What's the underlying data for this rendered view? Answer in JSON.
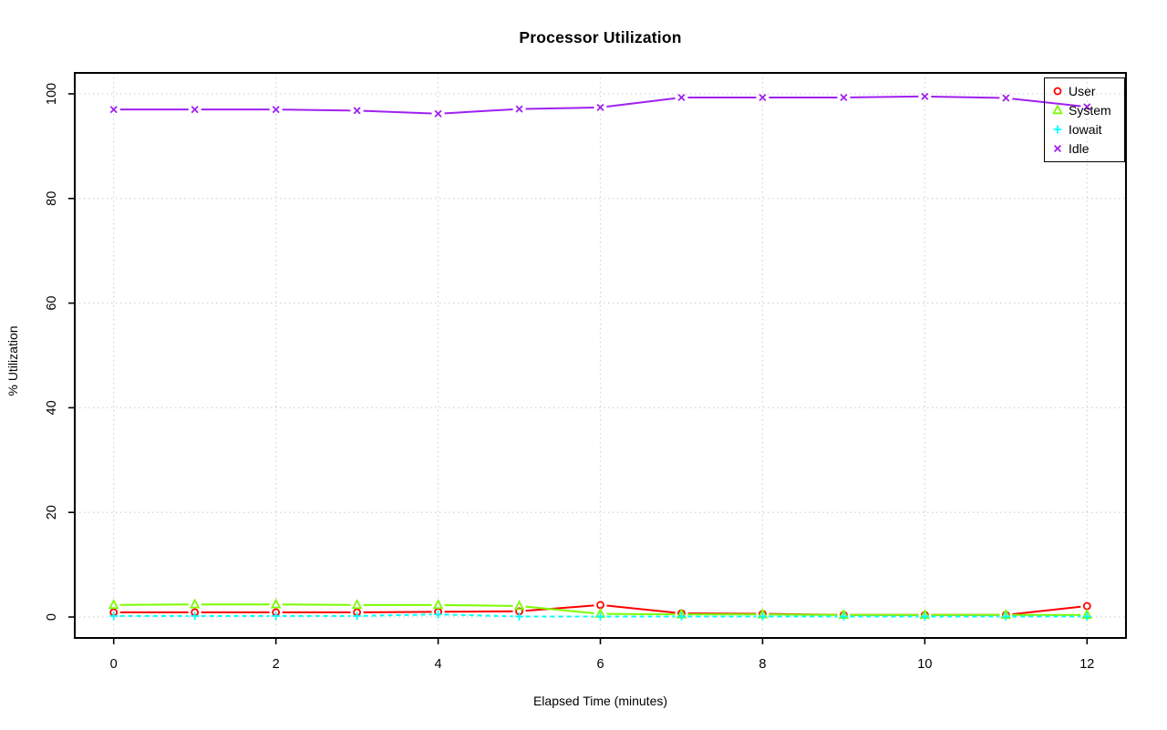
{
  "title": "Processor Utilization",
  "x_axis_title": "Elapsed Time (minutes)",
  "y_axis_title": "% Utilization",
  "colors": {
    "user": "#FF0000",
    "system": "#7CFC00",
    "iowait": "#00FFFF",
    "idle": "#A020F0",
    "grid": "#d4d4d4",
    "axis": "#000000"
  },
  "chart_data": {
    "type": "line",
    "title": "Processor Utilization",
    "xlabel": "Elapsed Time (minutes)",
    "ylabel": "% Utilization",
    "xlim": [
      0,
      12
    ],
    "ylim": [
      0,
      100
    ],
    "x_ticks": [
      0,
      2,
      4,
      6,
      8,
      10,
      12
    ],
    "y_ticks": [
      0,
      20,
      40,
      60,
      80,
      100
    ],
    "grid": true,
    "grid_style": "dotted",
    "legend_position": "top-right",
    "x": [
      0,
      1,
      2,
      3,
      4,
      5,
      6,
      7,
      8,
      9,
      10,
      11,
      12
    ],
    "series": [
      {
        "name": "User",
        "color": "#FF0000",
        "marker": "circle",
        "line": "solid",
        "values": [
          0.9,
          0.9,
          0.9,
          0.9,
          1.0,
          1.1,
          2.3,
          0.7,
          0.6,
          0.4,
          0.4,
          0.4,
          2.1
        ]
      },
      {
        "name": "System",
        "color": "#7CFC00",
        "marker": "triangle",
        "line": "solid",
        "values": [
          2.3,
          2.4,
          2.4,
          2.3,
          2.3,
          2.1,
          0.6,
          0.5,
          0.5,
          0.4,
          0.4,
          0.4,
          0.4
        ]
      },
      {
        "name": "Iowait",
        "color": "#00FFFF",
        "marker": "plus",
        "line": "dashed",
        "values": [
          0.2,
          0.2,
          0.2,
          0.2,
          0.5,
          0.1,
          0.1,
          0.1,
          0.1,
          0.1,
          0.1,
          0.1,
          0.1
        ]
      },
      {
        "name": "Idle",
        "color": "#A020F0",
        "marker": "x",
        "line": "solid",
        "values": [
          97.0,
          97.0,
          97.0,
          96.8,
          96.2,
          97.1,
          97.4,
          99.3,
          99.3,
          99.3,
          99.5,
          99.2,
          97.5
        ]
      }
    ]
  }
}
